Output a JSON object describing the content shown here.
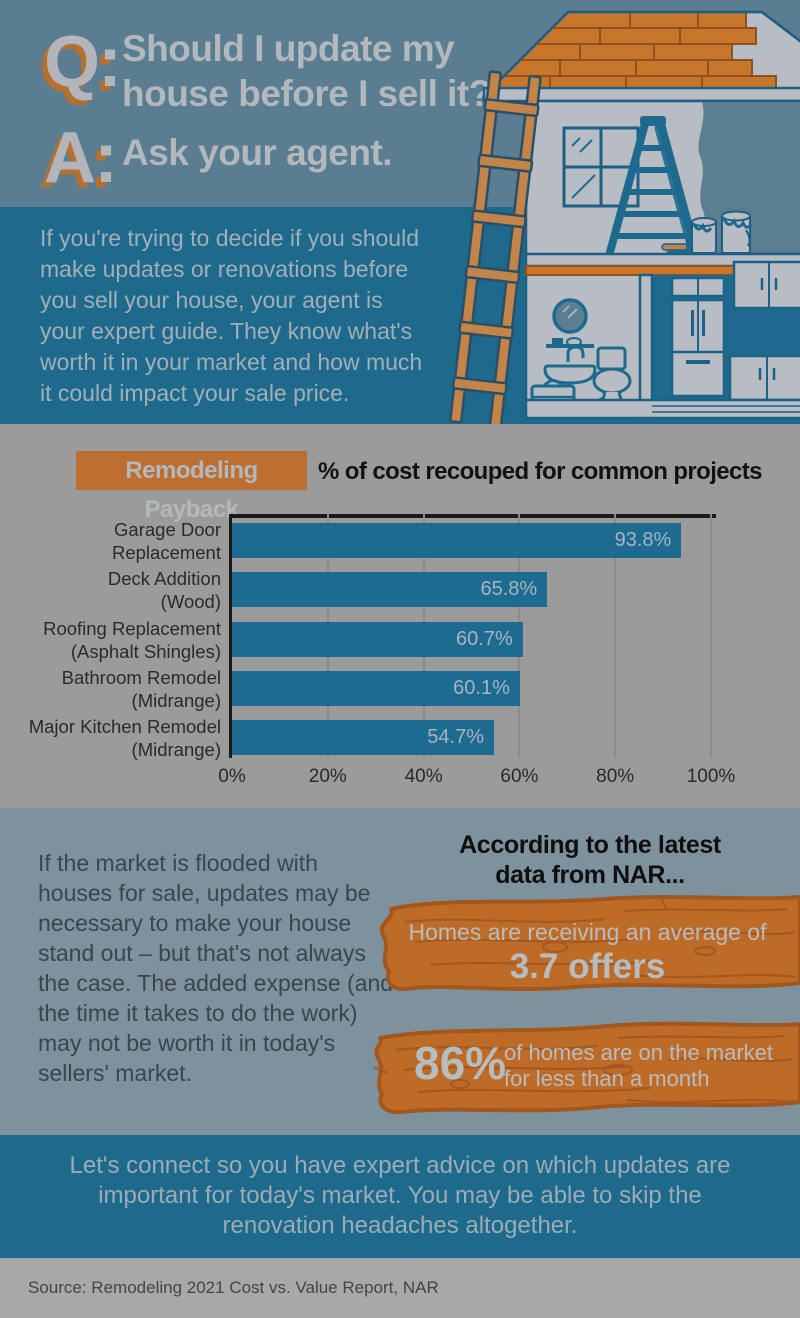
{
  "header": {
    "q_label": "Q:",
    "question": "Should I update my\nhouse before I sell it?",
    "a_label": "A:",
    "answer": "Ask your agent."
  },
  "intro": {
    "text": "If you're trying to decide if you should\nmake updates or renovations before\nyou sell your house, your agent is\nyour expert guide. They know what's\nworth it in your market and how much\nit could impact your sale price."
  },
  "chart_data": {
    "type": "bar",
    "orientation": "horizontal",
    "badge_label": "Remodeling Payback",
    "title": "% of cost recouped for common projects",
    "categories": [
      "Garage Door Replacement",
      "Deck Addition (Wood)",
      "Roofing Replacement (Asphalt Shingles)",
      "Bathroom Remodel (Midrange)",
      "Major Kitchen Remodel (Midrange)"
    ],
    "category_lines": [
      [
        "Garage Door",
        "Replacement"
      ],
      [
        "Deck Addition",
        "(Wood)"
      ],
      [
        "Roofing Replacement",
        "(Asphalt Shingles)"
      ],
      [
        "Bathroom Remodel",
        "(Midrange)"
      ],
      [
        "Major Kitchen Remodel",
        "(Midrange)"
      ]
    ],
    "values": [
      93.8,
      65.8,
      60.7,
      60.1,
      54.7
    ],
    "value_labels": [
      "93.8%",
      "65.8%",
      "60.7%",
      "60.1%",
      "54.7%"
    ],
    "x_ticks": [
      0,
      20,
      40,
      60,
      80,
      100
    ],
    "x_tick_labels": [
      "0%",
      "20%",
      "40%",
      "60%",
      "80%",
      "100%"
    ],
    "xlim": [
      0,
      100
    ],
    "grid": true,
    "legend": "none",
    "bar_color": "#1e6b92"
  },
  "market": {
    "paragraph": "If the market is flooded with\nhouses for sale, updates may be\nnecessary to make your house\nstand out – but that's not always\nthe case. The added expense (and\nthe time it takes to do the work)\nmay not be worth it in today's\nsellers' market.",
    "nar_heading": "According to the latest\ndata from NAR...",
    "stat_offers": {
      "intro": "Homes are receiving an average of",
      "value": "3.7 offers"
    },
    "stat_days": {
      "value": "86%",
      "text": "of homes are on the market\nfor less than a month"
    }
  },
  "cta": {
    "text": "Let's connect so you have expert advice on which updates are\nimportant for today's market. You may be able to skip the\nrenovation headaches altogether."
  },
  "source": {
    "text": "Source: Remodeling 2021 Cost vs. Value Report, NAR"
  },
  "illustration": {
    "label": "house-renovation-cutaway"
  },
  "colors": {
    "header_bg": "#5a7d91",
    "teal_bg": "#1e6a8d",
    "chart_bg": "#9b9b9b",
    "market_bg": "#7e929e",
    "source_bg": "#a8a8a8",
    "accent_orange": "#bd6f31",
    "wood_orange": "#bf6b28",
    "bar_blue": "#1e6b92",
    "light_text": "#b2b8bc",
    "dark_text": "#2a2a2a"
  }
}
